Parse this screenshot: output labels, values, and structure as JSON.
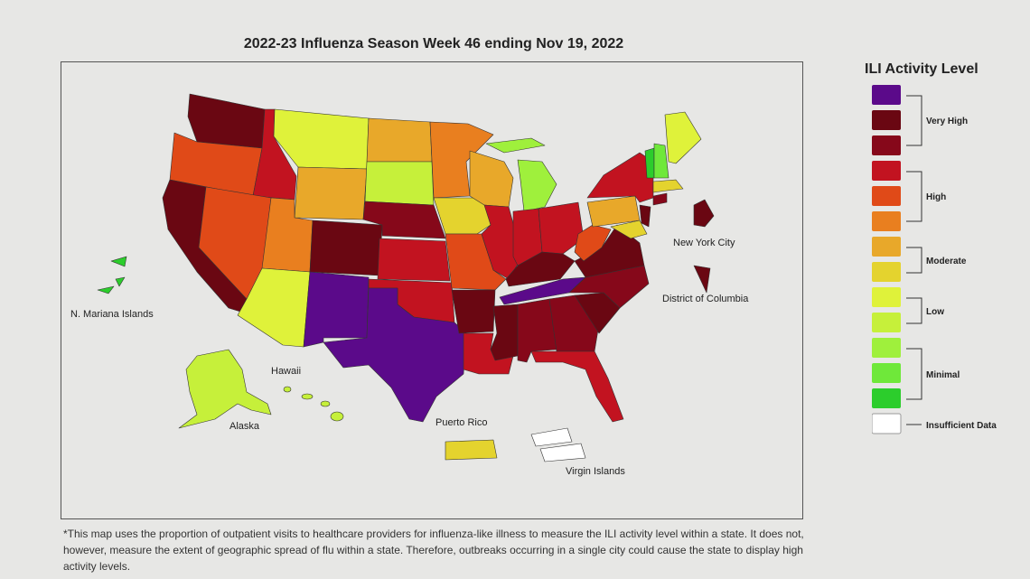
{
  "title": "2022-23 Influenza Season Week 46 ending Nov 19, 2022",
  "legend": {
    "title": "ILI Activity Level",
    "swatches": [
      {
        "level": 13,
        "color": "#5b0a8a"
      },
      {
        "level": 12,
        "color": "#6a0712"
      },
      {
        "level": 11,
        "color": "#86081a"
      },
      {
        "level": 10,
        "color": "#c21320"
      },
      {
        "level": 9,
        "color": "#e04a18"
      },
      {
        "level": 8,
        "color": "#e97f1f"
      },
      {
        "level": 7,
        "color": "#e8a82a"
      },
      {
        "level": 6,
        "color": "#e4d32e"
      },
      {
        "level": 5,
        "color": "#dff23a"
      },
      {
        "level": 4,
        "color": "#c6f03a"
      },
      {
        "level": 3,
        "color": "#9ff03c"
      },
      {
        "level": 2,
        "color": "#6fe83a"
      },
      {
        "level": 1,
        "color": "#2ccd2c"
      },
      {
        "level": 0,
        "color": "#ffffff"
      }
    ],
    "groups": [
      "Very High",
      "High",
      "Moderate",
      "Low",
      "Minimal"
    ],
    "insufficient_label": "Insufficient Data"
  },
  "map": {
    "labels": {
      "mariana": "N. Mariana Islands",
      "hawaii": "Hawaii",
      "alaska": "Alaska",
      "puerto_rico": "Puerto Rico",
      "virgin_islands": "Virgin Islands",
      "nyc": "New York City",
      "dc": "District of Columbia"
    },
    "state_levels": {
      "Washington": "Very High",
      "Oregon": "High",
      "California": "Very High",
      "Idaho": "High",
      "Nevada": "High",
      "Montana": "Low",
      "Wyoming": "Moderate",
      "Utah": "High",
      "Arizona": "Low",
      "Colorado": "Very High",
      "New Mexico": "Very High",
      "North Dakota": "Moderate",
      "South Dakota": "Low",
      "Nebraska": "Very High",
      "Kansas": "High",
      "Oklahoma": "High",
      "Texas": "Very High",
      "Minnesota": "High",
      "Iowa": "Moderate",
      "Missouri": "High",
      "Arkansas": "Very High",
      "Louisiana": "High",
      "Wisconsin": "Moderate",
      "Illinois": "High",
      "Michigan": "Minimal",
      "Indiana": "High",
      "Ohio": "High",
      "Kentucky": "Very High",
      "Tennessee": "Very High",
      "Mississippi": "Very High",
      "Alabama": "Very High",
      "Georgia": "Very High",
      "Florida": "High",
      "South Carolina": "Very High",
      "North Carolina": "Very High",
      "Virginia": "Very High",
      "West Virginia": "High",
      "Pennsylvania": "Moderate",
      "New York": "High",
      "Maryland": "Moderate",
      "Vermont": "Minimal",
      "New Hampshire": "Minimal",
      "Maine": "Low",
      "Massachusetts": "Moderate",
      "Connecticut": "Very High",
      "New Jersey": "Very High",
      "Alaska": "Low",
      "Hawaii": "Low",
      "Puerto Rico": "Moderate",
      "N. Mariana Islands": "Minimal",
      "New York City": "Very High",
      "District of Columbia": "Very High",
      "Virgin Islands": "Insufficient Data"
    }
  },
  "footnote": "*This map uses the proportion of outpatient visits to healthcare providers for influenza-like illness to measure the ILI activity level within a state. It does not, however, measure the extent of geographic spread of flu within a state. Therefore, outbreaks occurring in a single city could cause the state to display high activity levels."
}
